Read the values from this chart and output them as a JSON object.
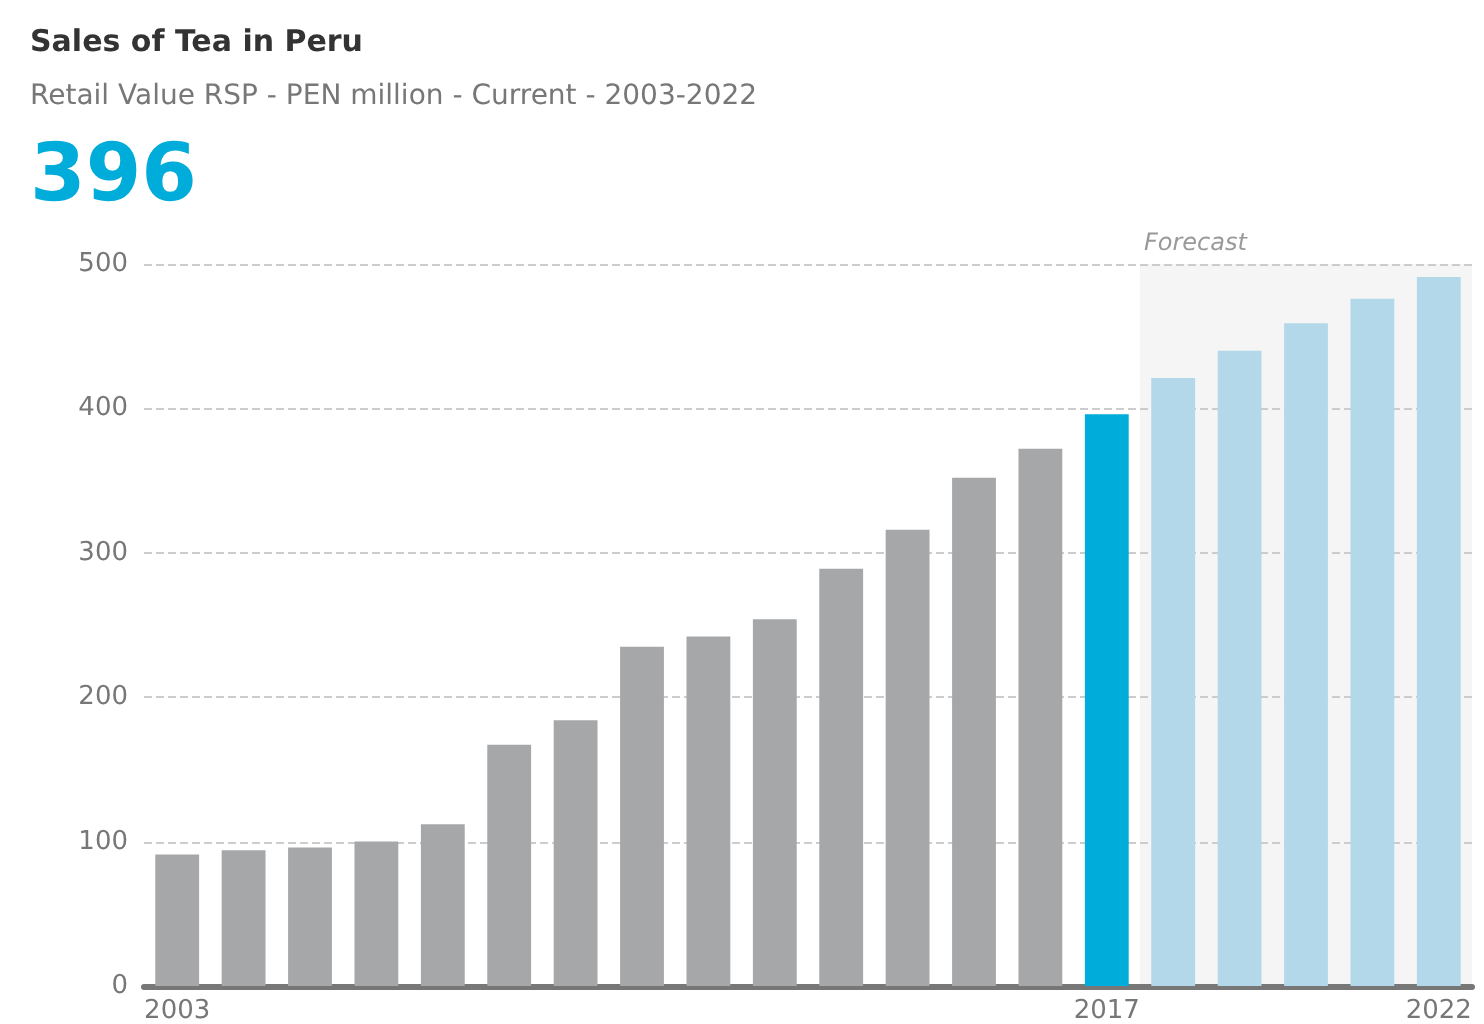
{
  "chart_data": {
    "type": "bar",
    "title": "Sales of Tea in Peru",
    "subtitle": "Retail Value RSP - PEN million - Current - 2003-2022",
    "annotations": [
      "396"
    ],
    "categories": [
      "2003",
      null,
      null,
      null,
      null,
      null,
      null,
      null,
      null,
      null,
      null,
      null,
      null,
      null,
      "2017",
      null,
      null,
      null,
      null,
      "2022"
    ],
    "values": [
      91,
      94,
      96,
      100,
      112,
      167,
      184,
      235,
      242,
      254,
      289,
      316,
      352,
      372,
      396,
      421,
      440,
      459,
      476,
      491
    ],
    "colors": [
      "#a6a7a9",
      "#a6a7a9",
      "#a6a7a9",
      "#a6a7a9",
      "#a6a7a9",
      "#a6a7a9",
      "#a6a7a9",
      "#a6a7a9",
      "#a6a7a9",
      "#a6a7a9",
      "#a6a7a9",
      "#a6a7a9",
      "#a6a7a9",
      "#a6a7a9",
      "#00acd9",
      "#b3d8ea",
      "#b3d8ea",
      "#b3d8ea",
      "#b3d8ea",
      "#b3d8ea"
    ],
    "ylim": [
      0,
      500
    ],
    "yticks": [
      0,
      100,
      200,
      300,
      400,
      500
    ],
    "grid": "y",
    "bands": [
      {
        "axis": "x",
        "from": "2017",
        "to": "2022",
        "label": "Forecast",
        "color": "#f5f5f5"
      }
    ]
  }
}
